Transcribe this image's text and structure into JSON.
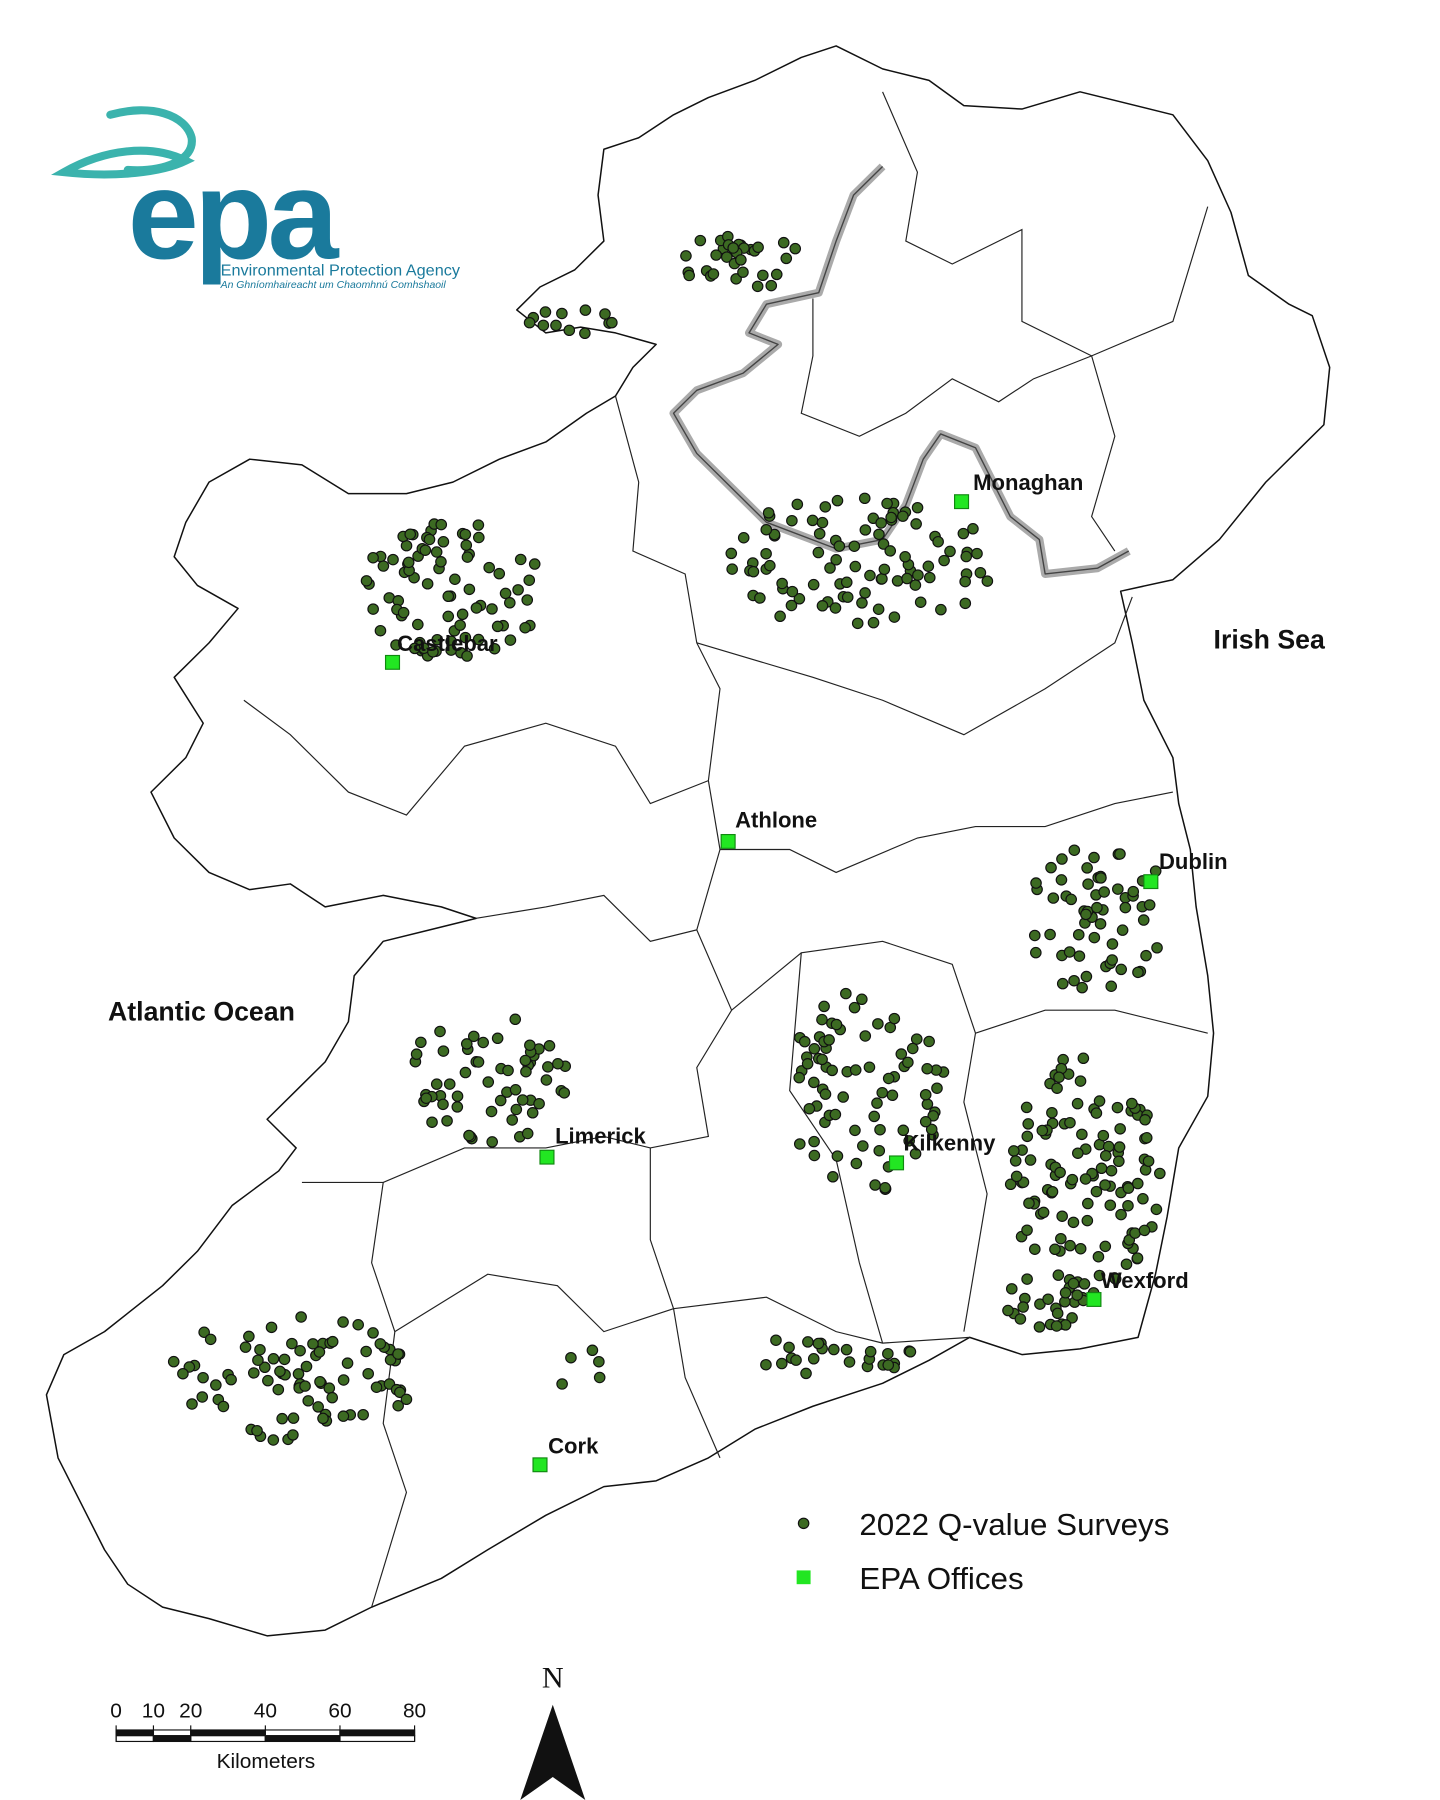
{
  "logo": {
    "wordmark": "epa",
    "name": "Environmental Protection Agency",
    "irish_name": "An Ghníomhaireacht um Chaomhnú Comhshaoil"
  },
  "seas": [
    "Irish Sea",
    "Atlantic Ocean"
  ],
  "offices": [
    "Monaghan",
    "Castlebar",
    "Athlone",
    "Dublin",
    "Limerick",
    "Kilkenny",
    "Wexford",
    "Cork"
  ],
  "legend": {
    "surveys": "2022 Q-value Surveys",
    "offices": "EPA Offices"
  },
  "scale_bar": {
    "ticks": [
      0,
      10,
      20,
      40,
      60,
      80
    ],
    "unit": "Kilometers"
  },
  "north": "N"
}
